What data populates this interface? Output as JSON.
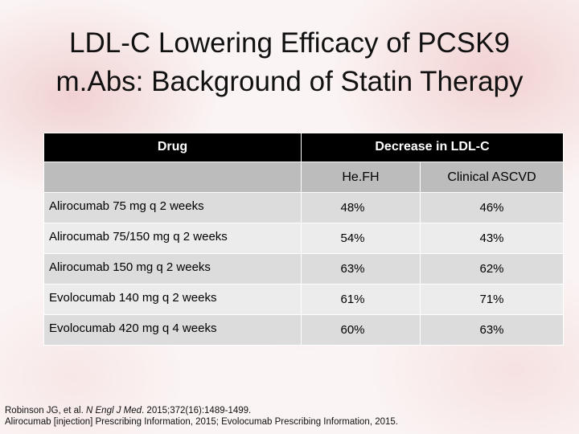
{
  "title": {
    "line1": "LDL-C Lowering Efficacy of PCSK9",
    "line2": "m.Abs: Background of Statin Therapy"
  },
  "table": {
    "header": {
      "drug": "Drug",
      "decrease": "Decrease in LDL-C"
    },
    "subheader": {
      "col1": "He.FH",
      "col2": "Clinical ASCVD"
    },
    "rows": [
      {
        "drug": "Alirocumab  75 mg q 2 weeks",
        "hefh": "48%",
        "ascvd": "46%"
      },
      {
        "drug": "Alirocumab 75/150 mg q 2 weeks",
        "hefh": "54%",
        "ascvd": "43%"
      },
      {
        "drug": "Alirocumab 150 mg q 2 weeks",
        "hefh": "63%",
        "ascvd": "62%"
      },
      {
        "drug": "Evolocumab 140 mg q 2 weeks",
        "hefh": "61%",
        "ascvd": "71%"
      },
      {
        "drug": "Evolocumab 420 mg q 4 weeks",
        "hefh": "60%",
        "ascvd": "63%"
      }
    ]
  },
  "footer": {
    "ref1_authors": "Robinson JG, et al. ",
    "ref1_journal": "N Engl J Med",
    "ref1_rest": ". 2015;372(16):1489-1499.",
    "ref2": "Alirocumab [injection] Prescribing Information, 2015; Evolocumab Prescribing Information, 2015."
  },
  "colors": {
    "header_bg": "#000000",
    "subheader_bg": "#bcbcbc",
    "row_odd_bg": "#dcdcdc",
    "row_even_bg": "#ececec",
    "background_tint": "#fbf4f4"
  }
}
